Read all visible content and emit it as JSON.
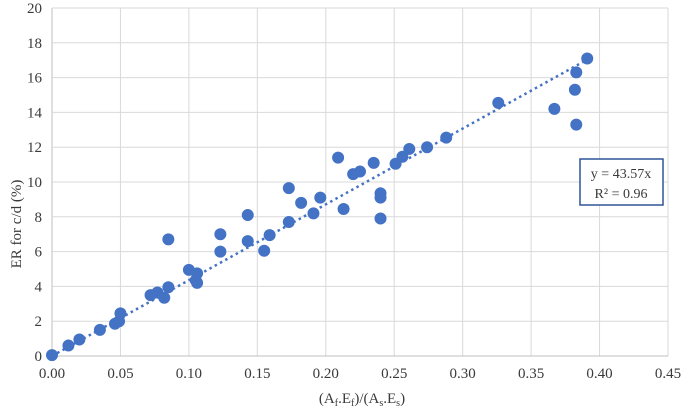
{
  "chart_data": {
    "type": "scatter",
    "title": "",
    "xlabel": {
      "pre": "(A",
      "s1": "f",
      "mid1": ".E",
      "s2": "f",
      "mid2": ")/(A",
      "s3": "s",
      "mid3": ".E",
      "s4": "s",
      "post": ")"
    },
    "ylabel": "ER for c/d (%)",
    "xlim": [
      0,
      0.45
    ],
    "ylim": [
      0,
      20
    ],
    "x_ticks": [
      "0.00",
      "0.05",
      "0.10",
      "0.15",
      "0.20",
      "0.25",
      "0.30",
      "0.35",
      "0.40",
      "0.45"
    ],
    "y_ticks": [
      "0",
      "2",
      "4",
      "6",
      "8",
      "10",
      "12",
      "14",
      "16",
      "18",
      "20"
    ],
    "grid": true,
    "point_color": "#4472c4",
    "trendline": {
      "type": "linear-through-origin",
      "slope": 43.57,
      "x_range": [
        0,
        0.39
      ]
    },
    "equation": {
      "line1": "y = 43.57x",
      "line2": "R² = 0.96"
    },
    "series": [
      {
        "points": [
          [
            0.0,
            0.05
          ],
          [
            0.012,
            0.6
          ],
          [
            0.02,
            0.95
          ],
          [
            0.035,
            1.5
          ],
          [
            0.046,
            1.85
          ],
          [
            0.049,
            2.0
          ],
          [
            0.05,
            2.45
          ],
          [
            0.072,
            3.5
          ],
          [
            0.077,
            3.65
          ],
          [
            0.082,
            3.35
          ],
          [
            0.085,
            3.95
          ],
          [
            0.085,
            6.7
          ],
          [
            0.1,
            4.95
          ],
          [
            0.105,
            4.35
          ],
          [
            0.106,
            4.2
          ],
          [
            0.106,
            4.75
          ],
          [
            0.123,
            6.0
          ],
          [
            0.123,
            7.0
          ],
          [
            0.143,
            6.6
          ],
          [
            0.143,
            8.1
          ],
          [
            0.155,
            6.05
          ],
          [
            0.159,
            6.95
          ],
          [
            0.173,
            7.7
          ],
          [
            0.173,
            9.65
          ],
          [
            0.182,
            8.8
          ],
          [
            0.191,
            8.2
          ],
          [
            0.196,
            9.1
          ],
          [
            0.209,
            11.4
          ],
          [
            0.213,
            8.45
          ],
          [
            0.22,
            10.45
          ],
          [
            0.225,
            10.6
          ],
          [
            0.235,
            11.1
          ],
          [
            0.24,
            9.35
          ],
          [
            0.24,
            9.1
          ],
          [
            0.24,
            7.9
          ],
          [
            0.251,
            11.05
          ],
          [
            0.256,
            11.45
          ],
          [
            0.261,
            11.9
          ],
          [
            0.274,
            12.0
          ],
          [
            0.288,
            12.55
          ],
          [
            0.326,
            14.55
          ],
          [
            0.367,
            14.2
          ],
          [
            0.382,
            15.3
          ],
          [
            0.383,
            16.3
          ],
          [
            0.383,
            13.3
          ],
          [
            0.391,
            17.1
          ]
        ]
      }
    ]
  }
}
